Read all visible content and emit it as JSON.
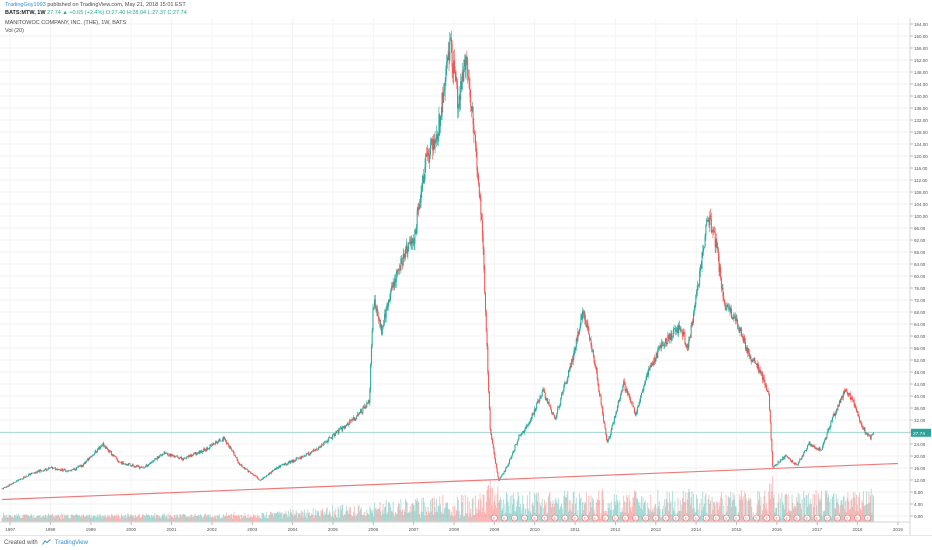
{
  "header": {
    "author": "TradingGoy1993",
    "published": "published on TradingView.com, May 21, 2018 15:01 EST",
    "symbol": "BATS:MTW, 1W",
    "last": "27.74",
    "change": "+0.65 (+2.4%)",
    "ohlc": "O:27.40 H:28.04 L:27.37 C:27.74",
    "company": "MANITOWOC COMPANY, INC. (THE), 1W, BATS",
    "volume_label": "Vol (20)"
  },
  "footer": {
    "created_with": "Created with",
    "brand": "TradingView"
  },
  "colors": {
    "up": "#26a69a",
    "down": "#ef5350",
    "trendline": "#f07a7a",
    "last_price_badge": "#26a69a",
    "event_marker": "#e57373"
  },
  "chart_data": {
    "type": "candlestick",
    "title": "MANITOWOC COMPANY, INC. (THE), 1W, BATS",
    "symbol": "BATS:MTW",
    "timeframe": "1W",
    "x_ticks": [
      "1997",
      "1998",
      "1999",
      "2000",
      "2001",
      "2002",
      "2003",
      "2004",
      "2005",
      "2006",
      "2007",
      "2008",
      "2009",
      "2010",
      "2011",
      "2012",
      "2013",
      "2014",
      "2015",
      "2016",
      "2017",
      "2018",
      "2019"
    ],
    "x_range": [
      1996.75,
      2019.3
    ],
    "y_ticks": [
      0,
      4,
      8,
      12,
      16,
      20,
      24,
      28,
      32,
      36,
      40,
      44,
      48,
      52,
      56,
      60,
      64,
      68,
      72,
      76,
      80,
      84,
      88,
      92,
      96,
      100,
      104,
      108,
      112,
      116,
      120,
      124,
      128,
      132,
      136,
      140,
      144,
      148,
      152,
      156,
      160,
      164
    ],
    "ylim": [
      -2,
      166
    ],
    "y_axis_side": "right",
    "last_price": 27.74,
    "price_path": [
      [
        1996.8,
        9
      ],
      [
        1997.5,
        14
      ],
      [
        1998.0,
        16
      ],
      [
        1998.5,
        15
      ],
      [
        1998.8,
        17
      ],
      [
        1999.3,
        24
      ],
      [
        1999.7,
        18
      ],
      [
        2000.3,
        16
      ],
      [
        2000.8,
        21
      ],
      [
        2001.3,
        19
      ],
      [
        2001.8,
        22
      ],
      [
        2002.3,
        26
      ],
      [
        2002.7,
        17
      ],
      [
        2003.2,
        12
      ],
      [
        2003.6,
        16
      ],
      [
        2004.1,
        19
      ],
      [
        2004.6,
        22
      ],
      [
        2005.1,
        28
      ],
      [
        2005.5,
        32
      ],
      [
        2005.9,
        38
      ],
      [
        2006.0,
        72
      ],
      [
        2006.2,
        62
      ],
      [
        2006.5,
        78
      ],
      [
        2006.8,
        88
      ],
      [
        2007.0,
        92
      ],
      [
        2007.3,
        118
      ],
      [
        2007.6,
        128
      ],
      [
        2007.9,
        158
      ],
      [
        2008.1,
        138
      ],
      [
        2008.3,
        152
      ],
      [
        2008.5,
        128
      ],
      [
        2008.7,
        96
      ],
      [
        2008.9,
        28
      ],
      [
        2009.1,
        12
      ],
      [
        2009.3,
        16
      ],
      [
        2009.6,
        26
      ],
      [
        2009.9,
        32
      ],
      [
        2010.2,
        42
      ],
      [
        2010.5,
        32
      ],
      [
        2010.8,
        46
      ],
      [
        2011.0,
        56
      ],
      [
        2011.2,
        69
      ],
      [
        2011.5,
        50
      ],
      [
        2011.8,
        24
      ],
      [
        2012.2,
        44
      ],
      [
        2012.5,
        34
      ],
      [
        2012.8,
        48
      ],
      [
        2013.2,
        58
      ],
      [
        2013.6,
        63
      ],
      [
        2013.8,
        56
      ],
      [
        2014.0,
        73
      ],
      [
        2014.3,
        100
      ],
      [
        2014.5,
        90
      ],
      [
        2014.7,
        70
      ],
      [
        2015.0,
        65
      ],
      [
        2015.3,
        54
      ],
      [
        2015.6,
        48
      ],
      [
        2015.8,
        40
      ],
      [
        2015.9,
        16
      ],
      [
        2016.2,
        20
      ],
      [
        2016.5,
        17
      ],
      [
        2016.8,
        24
      ],
      [
        2017.1,
        22
      ],
      [
        2017.4,
        33
      ],
      [
        2017.7,
        42
      ],
      [
        2017.9,
        38
      ],
      [
        2018.1,
        30
      ],
      [
        2018.3,
        26
      ],
      [
        2018.4,
        27.74
      ]
    ],
    "trendline": {
      "from": [
        1996.8,
        5.5
      ],
      "to": [
        2019.0,
        17.5
      ]
    },
    "price_line": 27.74,
    "volume_indicator": "Vol (20)",
    "grid": true,
    "legend": "none"
  }
}
